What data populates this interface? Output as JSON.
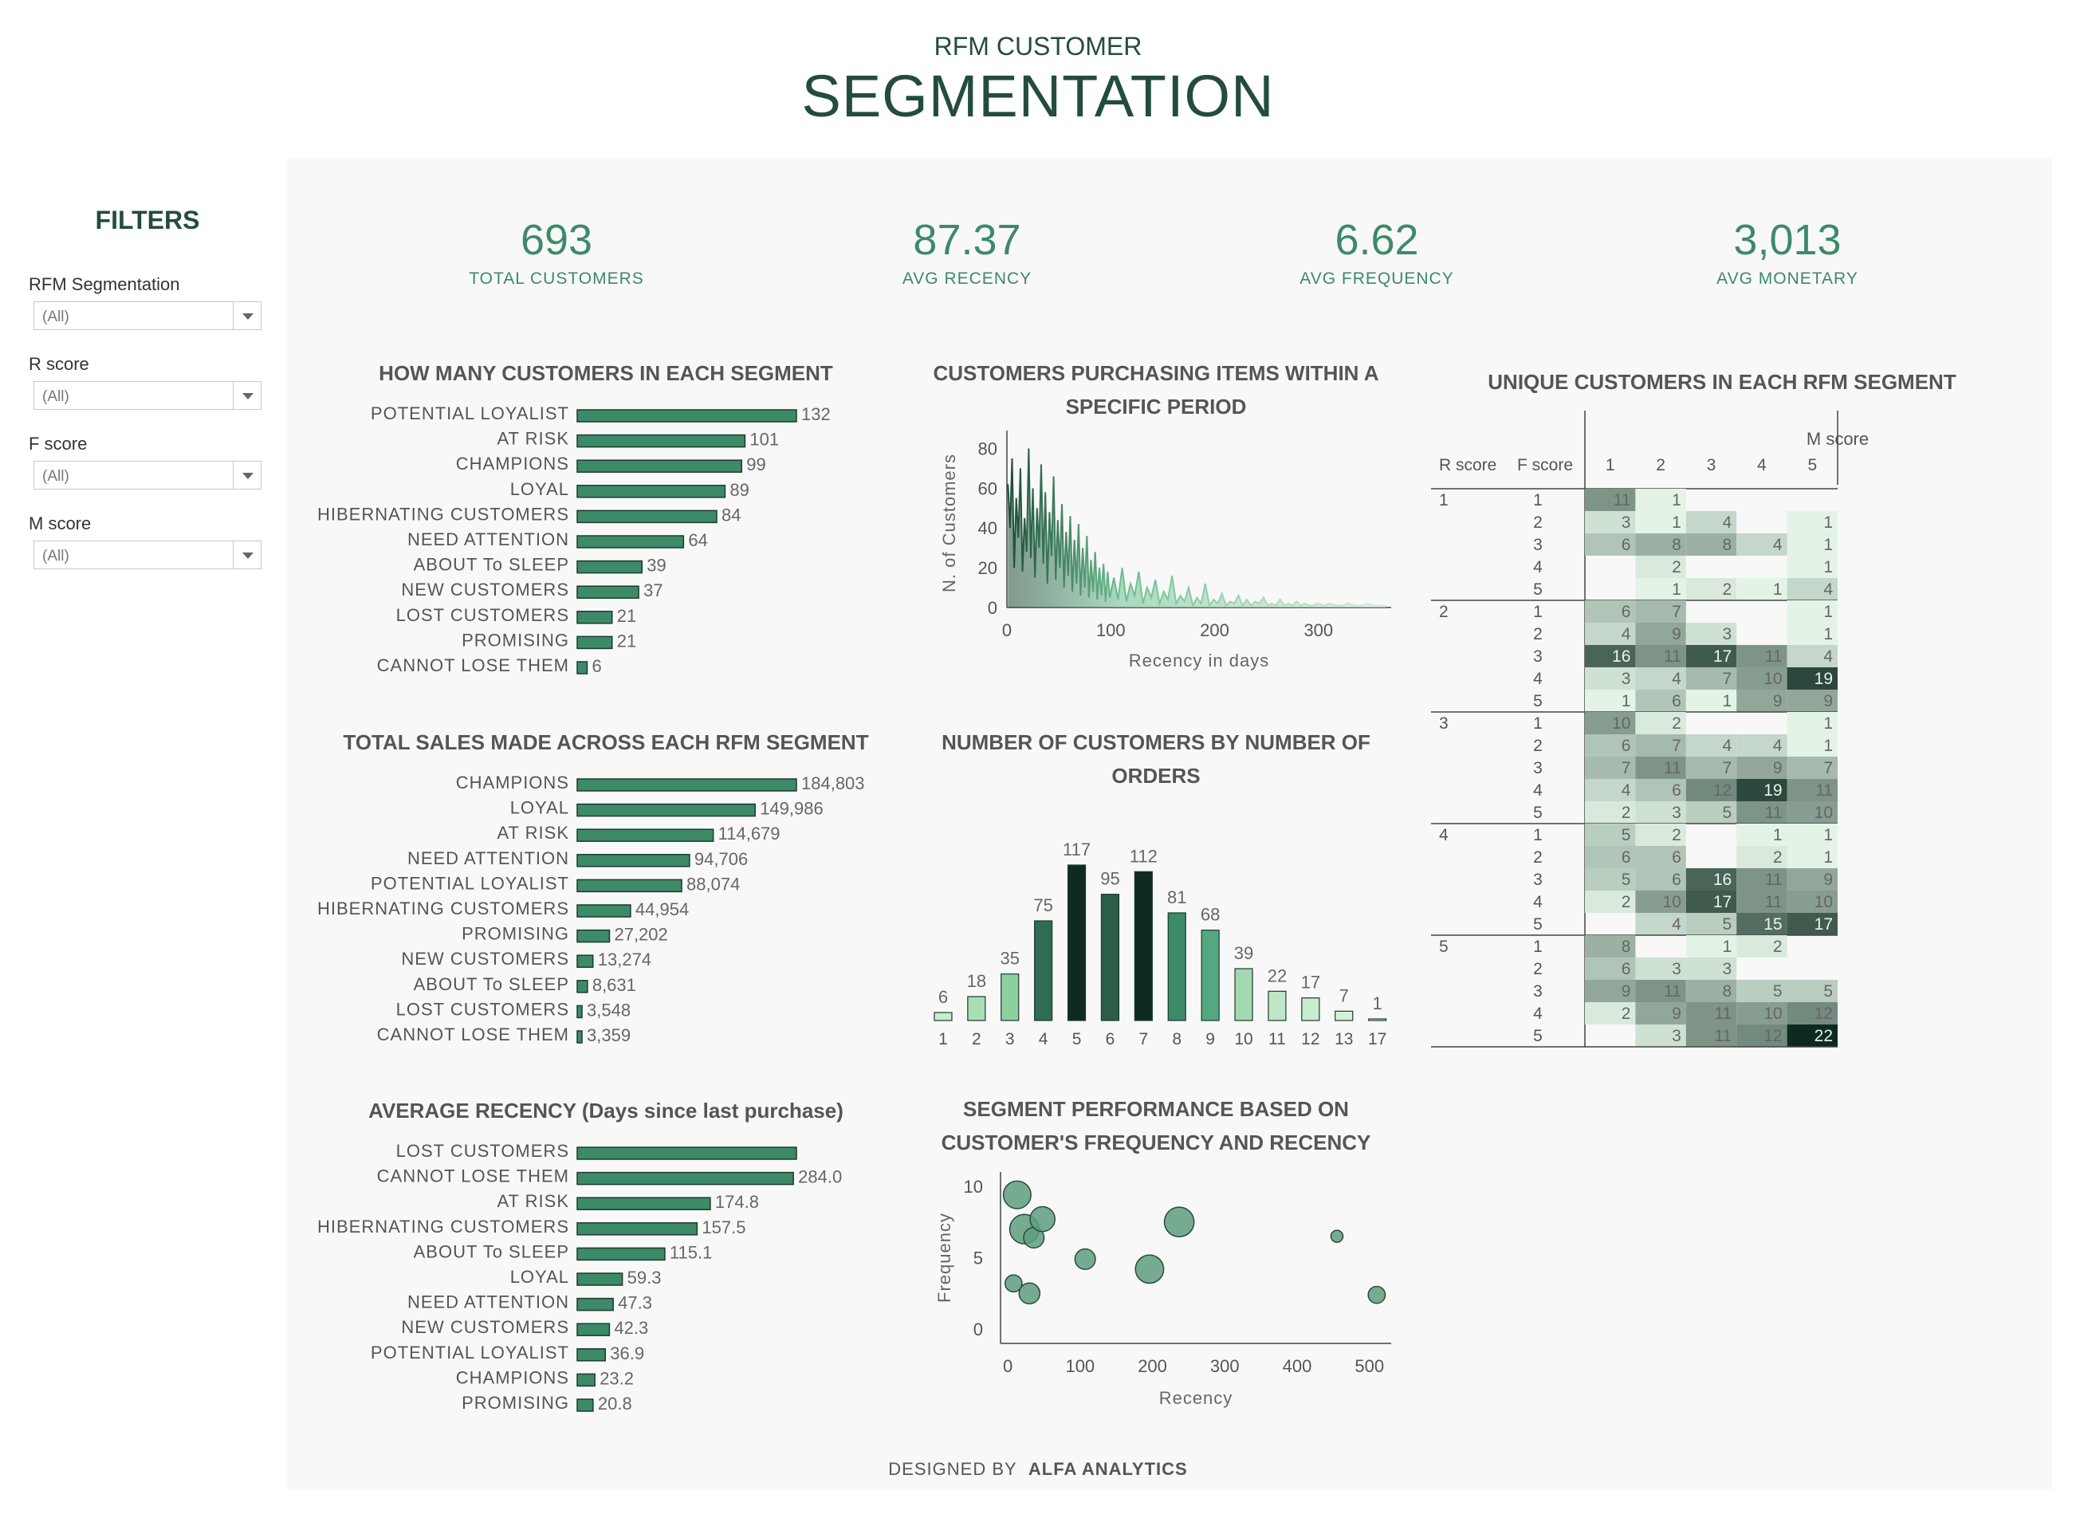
{
  "header": {
    "subtitle": "RFM CUSTOMER",
    "title": "SEGMENTATION"
  },
  "filters": {
    "title": "FILTERS",
    "items": [
      {
        "label": "RFM Segmentation",
        "value": "(All)"
      },
      {
        "label": "R score",
        "value": "(All)"
      },
      {
        "label": "F score",
        "value": "(All)"
      },
      {
        "label": "M score",
        "value": "(All)"
      }
    ]
  },
  "kpis": [
    {
      "value": "693",
      "label": "TOTAL CUSTOMERS"
    },
    {
      "value": "87.37",
      "label": "AVG RECENCY"
    },
    {
      "value": "6.62",
      "label": "AVG FREQUENCY"
    },
    {
      "value": "3,013",
      "label": "AVG MONETARY"
    }
  ],
  "footer": {
    "prefix": "DESIGNED BY",
    "brand": "ALFA ANALYTICS"
  },
  "colors": {
    "bar": "#3d8a68",
    "dark": "#234d3b",
    "heat_low": "#e3f4e6",
    "heat_high": "#0e2a1f"
  },
  "chart_data": [
    {
      "id": "segment-counts",
      "type": "bar",
      "orientation": "horizontal",
      "title": "HOW MANY CUSTOMERS IN EACH SEGMENT",
      "categories": [
        "POTENTIAL LOYALIST",
        "AT RISK",
        "CHAMPIONS",
        "LOYAL",
        "HIBERNATING CUSTOMERS",
        "NEED ATTENTION",
        "ABOUT To SLEEP",
        "NEW CUSTOMERS",
        "LOST CUSTOMERS",
        "PROMISING",
        "CANNOT LOSE THEM"
      ],
      "values": [
        132,
        101,
        99,
        89,
        84,
        64,
        39,
        37,
        21,
        21,
        6
      ],
      "labels": [
        "132",
        "101",
        "99",
        "89",
        "84",
        "64",
        "39",
        "37",
        "21",
        "21",
        "6"
      ]
    },
    {
      "id": "segment-sales",
      "type": "bar",
      "orientation": "horizontal",
      "title": "TOTAL SALES MADE ACROSS EACH RFM SEGMENT",
      "categories": [
        "CHAMPIONS",
        "LOYAL",
        "AT RISK",
        "NEED ATTENTION",
        "POTENTIAL LOYALIST",
        "HIBERNATING CUSTOMERS",
        "PROMISING",
        "NEW CUSTOMERS",
        "ABOUT To SLEEP",
        "LOST CUSTOMERS",
        "CANNOT LOSE THEM"
      ],
      "values": [
        184803,
        149986,
        114679,
        94706,
        88074,
        44954,
        27202,
        13274,
        8631,
        3548,
        3359
      ],
      "labels": [
        "184,803",
        "149,986",
        "114,679",
        "94,706",
        "88,074",
        "44,954",
        "27,202",
        "13,274",
        "8,631",
        "3,548",
        "3,359"
      ]
    },
    {
      "id": "segment-recency",
      "type": "bar",
      "orientation": "horizontal",
      "title": "AVERAGE RECENCY (Days since last purchase)",
      "categories": [
        "LOST CUSTOMERS",
        "CANNOT LOSE THEM",
        "AT RISK",
        "HIBERNATING CUSTOMERS",
        "ABOUT To SLEEP",
        "LOYAL",
        "NEED ATTENTION",
        "NEW CUSTOMERS",
        "POTENTIAL LOYALIST",
        "CHAMPIONS",
        "PROMISING"
      ],
      "values": [
        288,
        284.0,
        174.8,
        157.5,
        115.1,
        59.3,
        47.3,
        42.3,
        36.9,
        23.2,
        20.8
      ],
      "labels": [
        "",
        "284.0",
        "174.8",
        "157.5",
        "115.1",
        "59.3",
        "47.3",
        "42.3",
        "36.9",
        "23.2",
        "20.8"
      ]
    },
    {
      "id": "recency-distribution",
      "type": "area",
      "title": "CUSTOMERS PURCHASING ITEMS WITHIN A SPECIFIC PERIOD",
      "xlabel": "Recency in days",
      "ylabel": "N. of Customers",
      "xlim": [
        0,
        370
      ],
      "ylim": [
        0,
        85
      ],
      "xticks": [
        "0",
        "100",
        "200",
        "300"
      ],
      "yticks": [
        "0",
        "20",
        "40",
        "60",
        "80"
      ],
      "x": [
        1,
        3,
        5,
        7,
        9,
        11,
        13,
        15,
        17,
        19,
        21,
        23,
        25,
        27,
        29,
        31,
        33,
        35,
        37,
        39,
        41,
        43,
        45,
        47,
        49,
        51,
        53,
        55,
        57,
        59,
        61,
        63,
        65,
        67,
        69,
        71,
        73,
        75,
        77,
        79,
        81,
        83,
        85,
        87,
        89,
        91,
        93,
        95,
        97,
        99,
        103,
        107,
        111,
        115,
        119,
        123,
        127,
        131,
        135,
        139,
        143,
        147,
        151,
        155,
        159,
        163,
        167,
        171,
        175,
        179,
        183,
        187,
        191,
        195,
        199,
        203,
        207,
        211,
        215,
        219,
        223,
        227,
        231,
        235,
        239,
        243,
        247,
        251,
        255,
        259,
        263,
        267,
        271,
        275,
        279,
        283,
        287,
        291,
        295,
        299,
        305,
        311,
        317,
        323,
        329,
        335,
        341,
        347,
        353,
        359,
        365
      ],
      "values": [
        62,
        40,
        75,
        20,
        55,
        35,
        70,
        18,
        45,
        28,
        80,
        25,
        60,
        15,
        50,
        30,
        72,
        22,
        58,
        12,
        48,
        26,
        66,
        14,
        44,
        20,
        52,
        10,
        38,
        16,
        46,
        8,
        34,
        12,
        42,
        6,
        30,
        10,
        36,
        5,
        24,
        8,
        28,
        4,
        20,
        6,
        22,
        3,
        18,
        5,
        15,
        4,
        20,
        3,
        12,
        6,
        18,
        2,
        10,
        5,
        14,
        2,
        8,
        4,
        16,
        2,
        6,
        3,
        10,
        1,
        5,
        2,
        12,
        1,
        4,
        2,
        7,
        1,
        3,
        2,
        6,
        1,
        4,
        1,
        3,
        2,
        5,
        1,
        2,
        1,
        4,
        1,
        2,
        1,
        3,
        1,
        2,
        1,
        1,
        2,
        1,
        2,
        1,
        1,
        2,
        1,
        1,
        2,
        1,
        1,
        1
      ]
    },
    {
      "id": "orders-distribution",
      "type": "bar",
      "title": "NUMBER OF CUSTOMERS BY NUMBER OF ORDERS",
      "categories": [
        "1",
        "2",
        "3",
        "4",
        "5",
        "6",
        "7",
        "8",
        "9",
        "10",
        "11",
        "12",
        "13",
        "17"
      ],
      "values": [
        6,
        18,
        35,
        75,
        117,
        95,
        112,
        81,
        68,
        39,
        22,
        17,
        7,
        1
      ],
      "colors": [
        "#c9eccf",
        "#a9dfb6",
        "#8ccfa1",
        "#2e6d51",
        "#0f2a20",
        "#2a5e47",
        "#0f2a20",
        "#3d8a68",
        "#54a77f",
        "#a3d9b0",
        "#bfe6c7",
        "#c9eccf",
        "#d6f1da",
        "#e3f4e6"
      ]
    },
    {
      "id": "segment-performance",
      "type": "scatter",
      "title": "SEGMENT PERFORMANCE BASED ON CUSTOMER'S FREQUENCY AND RECENCY",
      "xlabel": "Recency",
      "ylabel": "Frequency",
      "xlim": [
        -10,
        530
      ],
      "ylim": [
        -1,
        11
      ],
      "xticks": [
        "0",
        "100",
        "200",
        "300",
        "400",
        "500"
      ],
      "yticks": [
        "0",
        "5",
        "10"
      ],
      "points": [
        {
          "x": 13,
          "y": 9.4,
          "size": 84
        },
        {
          "x": 23,
          "y": 7.0,
          "size": 99
        },
        {
          "x": 36,
          "y": 6.4,
          "size": 37
        },
        {
          "x": 48,
          "y": 7.7,
          "size": 64
        },
        {
          "x": 8,
          "y": 3.2,
          "size": 21
        },
        {
          "x": 30,
          "y": 2.5,
          "size": 39
        },
        {
          "x": 107,
          "y": 4.9,
          "size": 37
        },
        {
          "x": 196,
          "y": 4.2,
          "size": 89
        },
        {
          "x": 237,
          "y": 7.5,
          "size": 101
        },
        {
          "x": 455,
          "y": 6.5,
          "size": 6
        },
        {
          "x": 510,
          "y": 2.4,
          "size": 21
        }
      ]
    },
    {
      "id": "rfm-heatmap",
      "type": "heatmap",
      "title": "UNIQUE CUSTOMERS IN EACH RFM SEGMENT",
      "col_header": "M score",
      "row_headers": [
        "R score",
        "F score"
      ],
      "r_scores": [
        "1",
        "2",
        "3",
        "4",
        "5"
      ],
      "f_scores": [
        "1",
        "2",
        "3",
        "4",
        "5"
      ],
      "m_scores": [
        "1",
        "2",
        "3",
        "4",
        "5"
      ],
      "values": [
        [
          [
            11,
            1,
            null,
            null,
            null
          ],
          [
            3,
            1,
            4,
            null,
            1
          ],
          [
            6,
            8,
            8,
            4,
            1
          ],
          [
            null,
            2,
            null,
            null,
            1
          ],
          [
            null,
            1,
            2,
            1,
            4
          ]
        ],
        [
          [
            6,
            7,
            null,
            null,
            1
          ],
          [
            4,
            9,
            3,
            null,
            1
          ],
          [
            16,
            11,
            17,
            11,
            4
          ],
          [
            3,
            4,
            7,
            10,
            19
          ],
          [
            1,
            6,
            1,
            9,
            9
          ]
        ],
        [
          [
            10,
            2,
            null,
            null,
            1
          ],
          [
            6,
            7,
            4,
            4,
            1
          ],
          [
            7,
            11,
            7,
            9,
            7
          ],
          [
            4,
            6,
            12,
            19,
            11
          ],
          [
            2,
            3,
            5,
            11,
            10
          ]
        ],
        [
          [
            5,
            2,
            null,
            1,
            1
          ],
          [
            6,
            6,
            null,
            2,
            1
          ],
          [
            5,
            6,
            16,
            11,
            9
          ],
          [
            2,
            10,
            17,
            11,
            10
          ],
          [
            null,
            4,
            5,
            15,
            17
          ]
        ],
        [
          [
            8,
            null,
            1,
            2,
            null
          ],
          [
            6,
            3,
            3,
            null,
            null
          ],
          [
            9,
            11,
            8,
            5,
            5
          ],
          [
            2,
            9,
            11,
            10,
            12
          ],
          [
            null,
            3,
            11,
            12,
            22
          ]
        ]
      ]
    }
  ]
}
